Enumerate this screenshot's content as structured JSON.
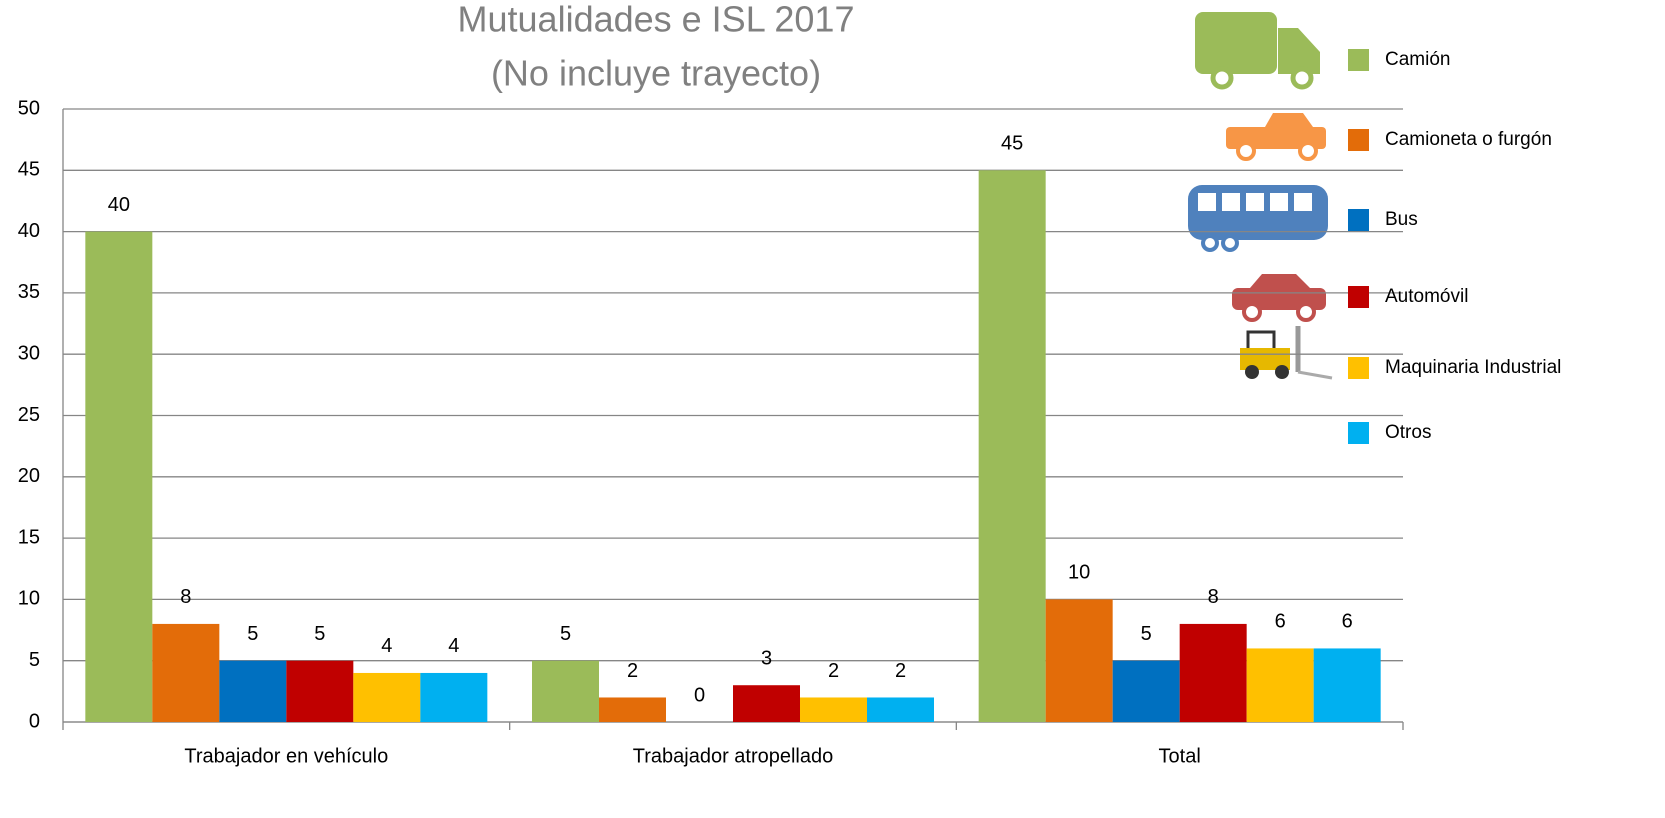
{
  "chart_data": {
    "type": "bar",
    "title": "Mutualidades e ISL 2017",
    "subtitle": "(No incluye trayecto)",
    "categories": [
      "Trabajador en vehículo",
      "Trabajador atropellado",
      "Total"
    ],
    "series": [
      {
        "name": "Camión",
        "color": "#9bbb59",
        "values": [
          40,
          5,
          45
        ]
      },
      {
        "name": "Camioneta o furgón",
        "color": "#e36c09",
        "values": [
          8,
          2,
          10
        ]
      },
      {
        "name": "Bus",
        "color": "#0070c0",
        "values": [
          5,
          0,
          5
        ]
      },
      {
        "name": "Automóvil",
        "color": "#c00000",
        "values": [
          5,
          3,
          8
        ]
      },
      {
        "name": "Maquinaria Industrial",
        "color": "#ffc000",
        "values": [
          4,
          2,
          6
        ]
      },
      {
        "name": "Otros",
        "color": "#00b0f0",
        "values": [
          4,
          2,
          6
        ]
      }
    ],
    "ylim": [
      0,
      50
    ],
    "yticks": [
      0,
      5,
      10,
      15,
      20,
      25,
      30,
      35,
      40,
      45,
      50
    ],
    "grid": true,
    "legend": "top-right",
    "data_labels": true
  }
}
